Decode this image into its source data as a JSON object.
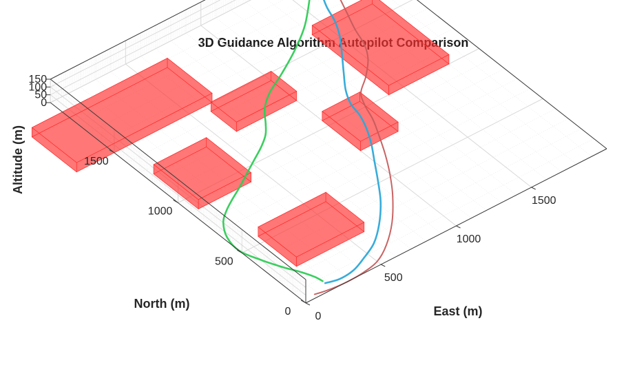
{
  "chart_data": {
    "type": "line3d",
    "title": "3D Guidance Algorithm Autopilot Comparison",
    "xlabel": "East (m)",
    "ylabel": "North (m)",
    "zlabel": "Altitude (m)",
    "xlim": [
      0,
      2000
    ],
    "ylim": [
      0,
      2000
    ],
    "zlim": [
      0,
      150
    ],
    "x_ticks": [
      0,
      500,
      1000,
      1500
    ],
    "y_ticks": [
      0,
      500,
      1000,
      1500
    ],
    "z_ticks": [
      0,
      50,
      100,
      150
    ],
    "grid": true,
    "colors": {
      "buildings": "#ff3333",
      "series": [
        "#c65b5b",
        "#2ca8d8",
        "#2ecc55"
      ]
    },
    "buildings": [
      {
        "x": [
          -250,
          650
        ],
        "y": [
          1500,
          1850
        ],
        "z": [
          0,
          60
        ]
      },
      {
        "x": [
          50,
          400
        ],
        "y": [
          900,
          1250
        ],
        "z": [
          0,
          60
        ]
      },
      {
        "x": [
          600,
          1000
        ],
        "y": [
          1250,
          1450
        ],
        "z": [
          0,
          60
        ]
      },
      {
        "x": [
          150,
          600
        ],
        "y": [
          250,
          550
        ],
        "z": [
          0,
          60
        ]
      },
      {
        "x": [
          1000,
          1250
        ],
        "y": [
          750,
          1050
        ],
        "z": [
          0,
          60
        ]
      },
      {
        "x": [
          1400,
          1800
        ],
        "y": [
          1000,
          1600
        ],
        "z": [
          0,
          60
        ]
      }
    ],
    "series": [
      {
        "x": [
          80,
          150,
          260,
          380,
          500,
          620,
          760,
          900,
          1000,
          1080,
          1150,
          1210,
          1250,
          1300,
          1400,
          1500,
          1560,
          1600,
          1650,
          1700,
          1750
        ],
        "y": [
          25,
          10,
          0,
          5,
          30,
          100,
          220,
          380,
          520,
          650,
          780,
          900,
          1010,
          1100,
          1180,
          1280,
          1380,
          1500,
          1620,
          1740,
          1860
        ],
        "z": [
          0,
          0,
          0,
          0,
          0,
          0,
          0,
          0,
          0,
          0,
          0,
          0,
          0,
          0,
          0,
          0,
          0,
          0,
          0,
          0,
          0
        ]
      },
      {
        "x": [
          180,
          260,
          360,
          460,
          580,
          700,
          820,
          920,
          1000,
          1080,
          1140,
          1180,
          1200,
          1250,
          1330,
          1420,
          1500,
          1560,
          1600,
          1650,
          1700
        ],
        "y": [
          60,
          40,
          50,
          90,
          150,
          250,
          380,
          520,
          640,
          760,
          870,
          970,
          1060,
          1160,
          1270,
          1390,
          1500,
          1610,
          1720,
          1820,
          1900
        ],
        "z": [
          0,
          0,
          0,
          0,
          0,
          0,
          0,
          0,
          0,
          0,
          0,
          0,
          0,
          0,
          0,
          0,
          0,
          0,
          0,
          0,
          0
        ]
      },
      {
        "x": [
          180,
          170,
          140,
          90,
          40,
          0,
          20,
          80,
          150,
          230,
          320,
          420,
          520,
          620,
          700,
          760,
          830,
          930,
          1080,
          1250,
          1420,
          1600
        ],
        "y": [
          80,
          130,
          200,
          290,
          400,
          520,
          640,
          740,
          800,
          850,
          900,
          960,
          1020,
          1080,
          1140,
          1210,
          1300,
          1380,
          1460,
          1560,
          1680,
          1850
        ],
        "z": [
          0,
          0,
          0,
          0,
          0,
          0,
          0,
          0,
          0,
          0,
          0,
          0,
          0,
          0,
          0,
          0,
          0,
          0,
          0,
          0,
          0,
          0
        ]
      }
    ]
  }
}
